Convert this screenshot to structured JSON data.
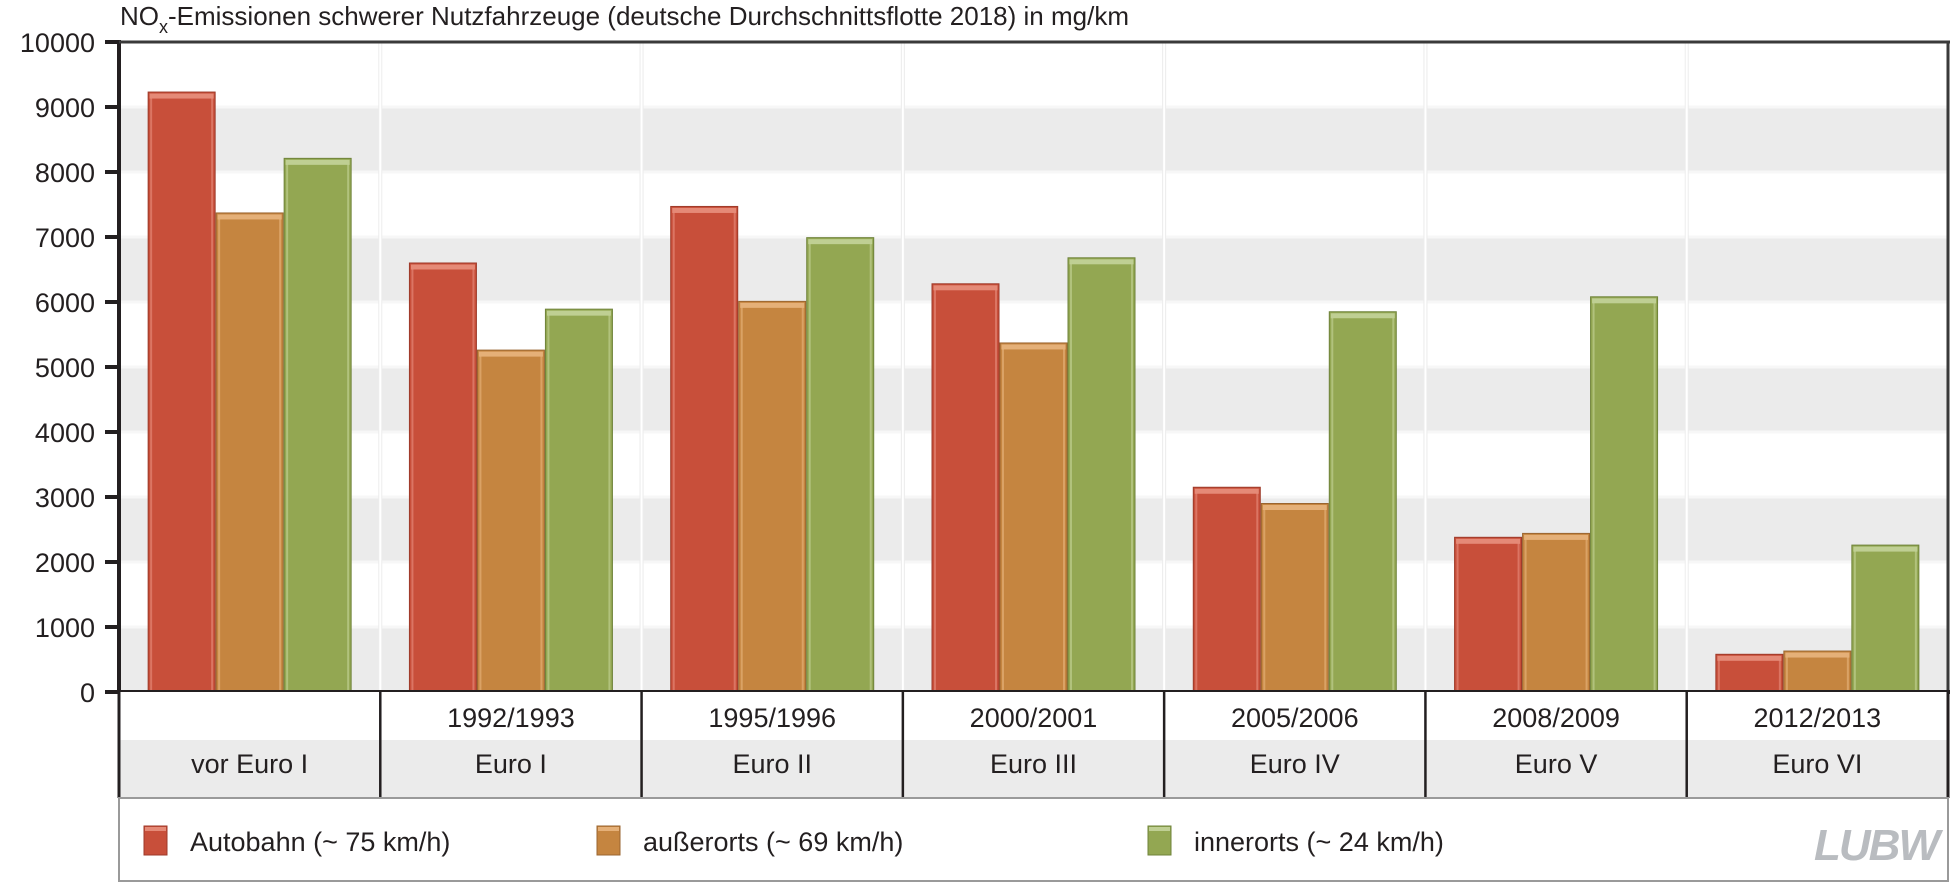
{
  "chart_data": {
    "type": "bar",
    "title_main": "NO",
    "title_sub": "x",
    "title_rest": "-Emissionen schwerer Nutzfahrzeuge (deutsche Durchschnittsflotte 2018) in mg/km",
    "title": "NOx-Emissionen schwerer Nutzfahrzeuge (deutsche Durchschnittsflotte 2018) in mg/km",
    "xlabel": "",
    "ylabel": "",
    "ylim": [
      0,
      10000
    ],
    "yticks": [
      0,
      1000,
      2000,
      3000,
      4000,
      5000,
      6000,
      7000,
      8000,
      9000,
      10000
    ],
    "grid": "alternating horizontal bands",
    "categories": [
      {
        "years": "",
        "label": "vor Euro I"
      },
      {
        "years": "1992/1993",
        "label": "Euro I"
      },
      {
        "years": "1995/1996",
        "label": "Euro II"
      },
      {
        "years": "2000/2001",
        "label": "Euro III"
      },
      {
        "years": "2005/2006",
        "label": "Euro IV"
      },
      {
        "years": "2008/2009",
        "label": "Euro V"
      },
      {
        "years": "2012/2013",
        "label": "Euro VI"
      }
    ],
    "series": [
      {
        "name": "Autobahn (~ 75 km/h)",
        "color": "#c84f3a",
        "values": [
          9230,
          6600,
          7470,
          6280,
          3150,
          2380,
          580
        ]
      },
      {
        "name": "außerorts (~ 69 km/h)",
        "color": "#c58540",
        "values": [
          7370,
          5260,
          6010,
          5370,
          2900,
          2440,
          630
        ]
      },
      {
        "name": "innerorts (~ 24 km/h)",
        "color": "#93a752",
        "values": [
          8210,
          5890,
          6990,
          6680,
          5850,
          6080,
          2260
        ]
      }
    ],
    "legend_position": "bottom"
  },
  "logo": {
    "text": "LUBW"
  },
  "colors": {
    "band": "#ebebeb",
    "axis": "#231f20"
  }
}
